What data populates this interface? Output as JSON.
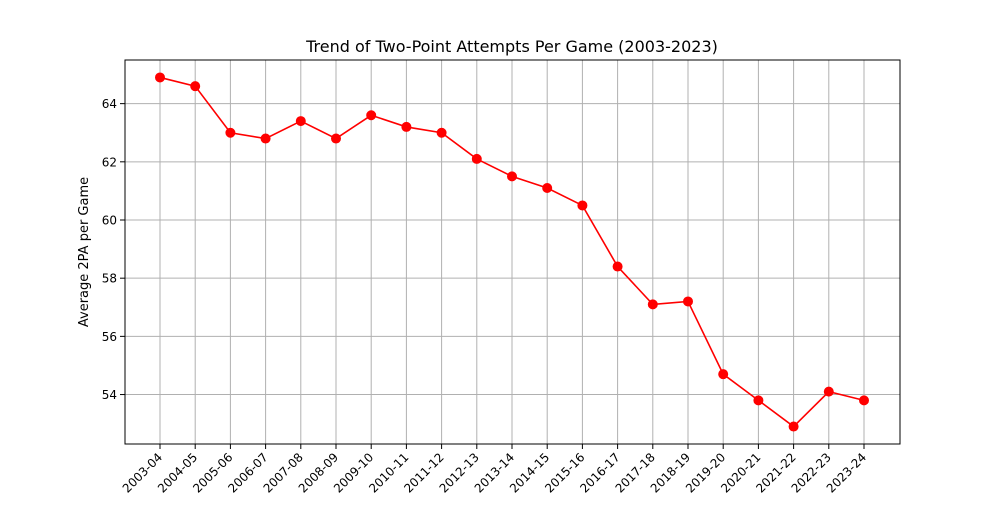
{
  "chart_data": {
    "type": "line",
    "title": "Trend of Two-Point Attempts Per Game (2003-2023)",
    "xlabel": "",
    "ylabel": "Average 2PA per Game",
    "categories": [
      "2003-04",
      "2004-05",
      "2005-06",
      "2006-07",
      "2007-08",
      "2008-09",
      "2009-10",
      "2010-11",
      "2011-12",
      "2012-13",
      "2013-14",
      "2014-15",
      "2015-16",
      "2016-17",
      "2017-18",
      "2018-19",
      "2019-20",
      "2020-21",
      "2021-22",
      "2022-23",
      "2023-24"
    ],
    "series": [
      {
        "color": "#ff0000",
        "marker": "circle",
        "values": [
          64.9,
          64.6,
          63.0,
          62.8,
          63.4,
          62.8,
          63.6,
          63.2,
          63.0,
          62.1,
          61.5,
          61.1,
          60.5,
          58.4,
          57.1,
          57.2,
          54.7,
          53.8,
          52.9,
          54.1,
          53.8
        ]
      }
    ],
    "yticks": [
      54,
      56,
      58,
      60,
      62,
      64
    ],
    "ylim": [
      52.3,
      65.5
    ],
    "grid": true,
    "legend": false
  }
}
